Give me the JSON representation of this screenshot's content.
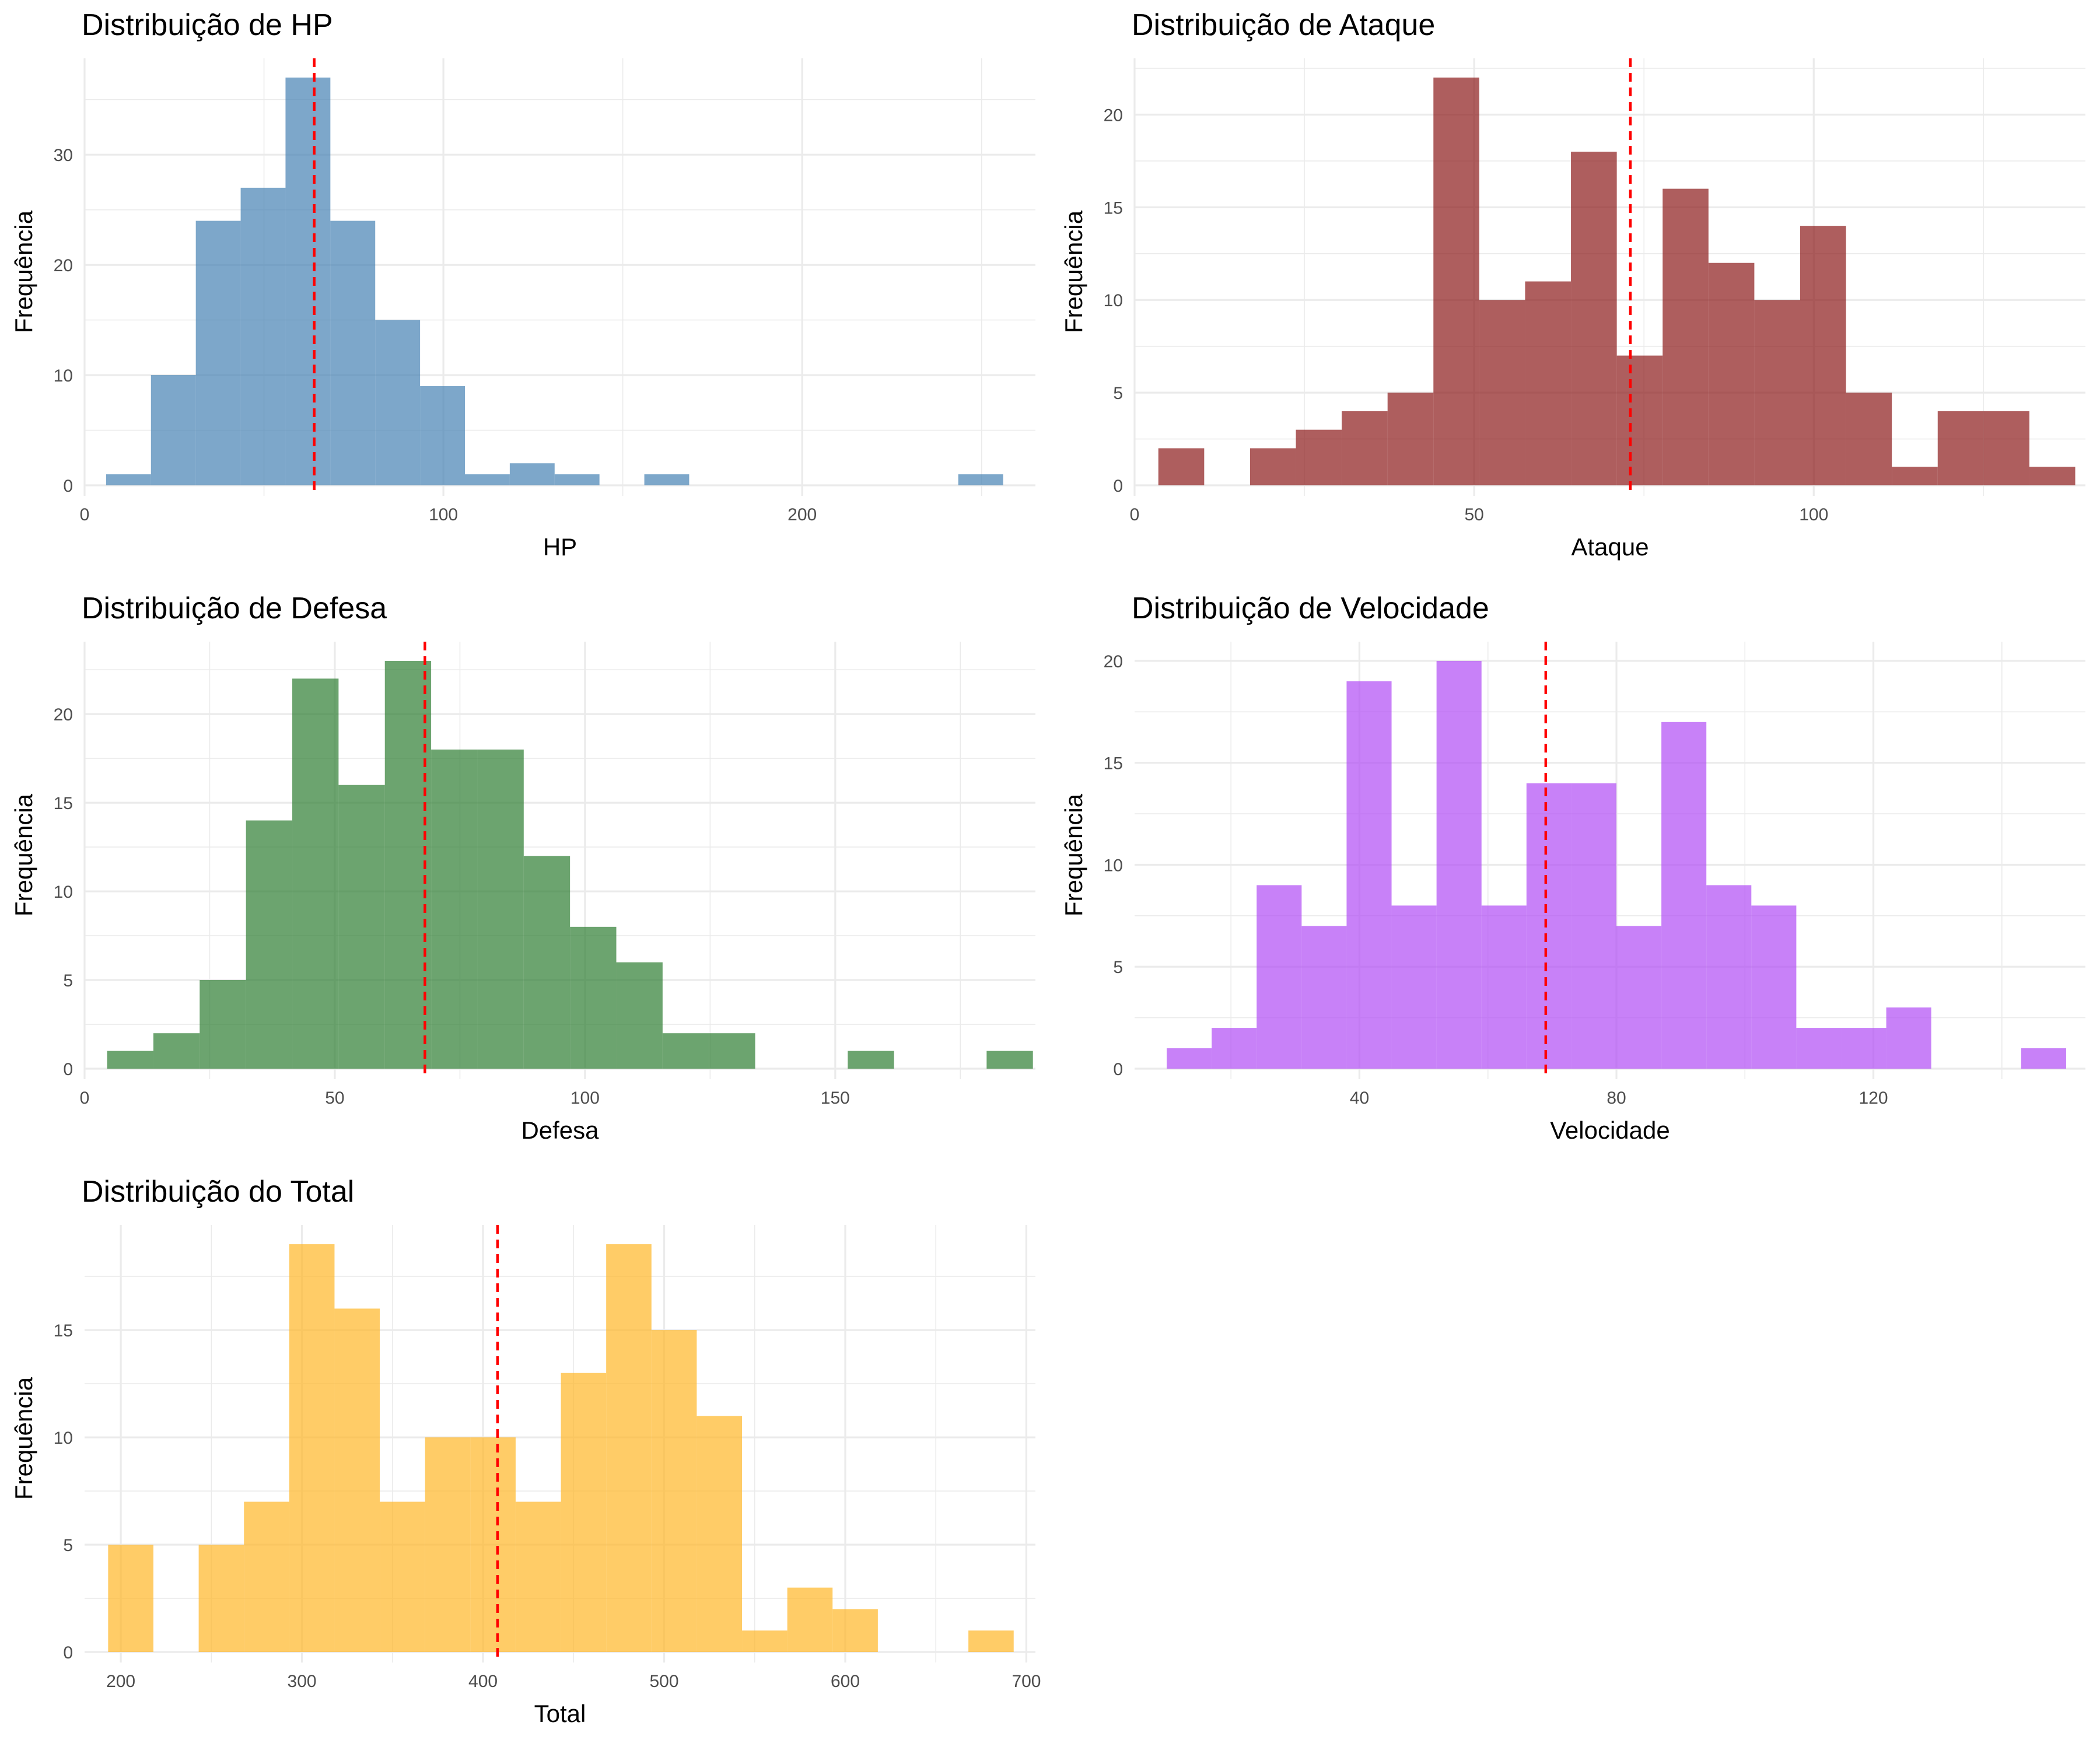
{
  "chart_data": [
    {
      "type": "bar",
      "title": "Distribuição de HP",
      "xlabel": "HP",
      "ylabel": "Frequência",
      "color": "#4682B4",
      "xlim": [
        0,
        265
      ],
      "ylim": [
        0,
        37
      ],
      "xticks": [
        0,
        100,
        200
      ],
      "yticks": [
        0,
        10,
        20,
        30
      ],
      "mean": 64,
      "bin_width": 12.5,
      "bins": [
        {
          "x0": 6,
          "count": 1
        },
        {
          "x0": 18.5,
          "count": 10
        },
        {
          "x0": 31,
          "count": 24
        },
        {
          "x0": 43.5,
          "count": 27
        },
        {
          "x0": 56,
          "count": 37
        },
        {
          "x0": 68.5,
          "count": 24
        },
        {
          "x0": 81,
          "count": 15
        },
        {
          "x0": 93.5,
          "count": 9
        },
        {
          "x0": 106,
          "count": 1
        },
        {
          "x0": 118.5,
          "count": 2
        },
        {
          "x0": 131,
          "count": 1
        },
        {
          "x0": 156,
          "count": 1
        },
        {
          "x0": 243.5,
          "count": 1
        }
      ]
    },
    {
      "type": "bar",
      "title": "Distribuição de Ataque",
      "xlabel": "Ataque",
      "ylabel": "Frequência",
      "color": "#8B1A1A",
      "xlim": [
        0,
        140
      ],
      "ylim": [
        0,
        22
      ],
      "xticks": [
        0,
        50,
        100
      ],
      "yticks": [
        0,
        5,
        10,
        15,
        20
      ],
      "mean": 73,
      "bin_width": 6.75,
      "bins": [
        {
          "x0": 3.5,
          "count": 2
        },
        {
          "x0": 17,
          "count": 2
        },
        {
          "x0": 23.75,
          "count": 3
        },
        {
          "x0": 30.5,
          "count": 4
        },
        {
          "x0": 37.25,
          "count": 5
        },
        {
          "x0": 44,
          "count": 22
        },
        {
          "x0": 50.75,
          "count": 10
        },
        {
          "x0": 57.5,
          "count": 11
        },
        {
          "x0": 64.25,
          "count": 18
        },
        {
          "x0": 71,
          "count": 7
        },
        {
          "x0": 77.75,
          "count": 16
        },
        {
          "x0": 84.5,
          "count": 12
        },
        {
          "x0": 91.25,
          "count": 10
        },
        {
          "x0": 98,
          "count": 14
        },
        {
          "x0": 104.75,
          "count": 5
        },
        {
          "x0": 111.5,
          "count": 1
        },
        {
          "x0": 118.25,
          "count": 4
        },
        {
          "x0": 125,
          "count": 4
        },
        {
          "x0": 131.75,
          "count": 1
        }
      ]
    },
    {
      "type": "bar",
      "title": "Distribuição de Defesa",
      "xlabel": "Defesa",
      "ylabel": "Frequência",
      "color": "#2E7D32",
      "xlim": [
        0,
        190
      ],
      "ylim": [
        0,
        23
      ],
      "xticks": [
        0,
        50,
        100,
        150
      ],
      "yticks": [
        0,
        5,
        10,
        15,
        20
      ],
      "mean": 68,
      "bin_width": 9.25,
      "bins": [
        {
          "x0": 4.5,
          "count": 1
        },
        {
          "x0": 13.75,
          "count": 2
        },
        {
          "x0": 23,
          "count": 5
        },
        {
          "x0": 32.25,
          "count": 14
        },
        {
          "x0": 41.5,
          "count": 22
        },
        {
          "x0": 50.75,
          "count": 16
        },
        {
          "x0": 60,
          "count": 23
        },
        {
          "x0": 69.25,
          "count": 18
        },
        {
          "x0": 78.5,
          "count": 18
        },
        {
          "x0": 87.75,
          "count": 12
        },
        {
          "x0": 97,
          "count": 8
        },
        {
          "x0": 106.25,
          "count": 6
        },
        {
          "x0": 115.5,
          "count": 2
        },
        {
          "x0": 124.75,
          "count": 2
        },
        {
          "x0": 152.5,
          "count": 1
        },
        {
          "x0": 180.25,
          "count": 1
        }
      ]
    },
    {
      "type": "bar",
      "title": "Distribuição de Velocidade",
      "xlabel": "Velocidade",
      "ylabel": "Frequência",
      "color": "#B04CF5",
      "xlim": [
        5,
        153
      ],
      "ylim": [
        0,
        20
      ],
      "xticks": [
        40,
        80,
        120
      ],
      "yticks": [
        0,
        5,
        10,
        15,
        20
      ],
      "mean": 69,
      "bin_width": 7,
      "bins": [
        {
          "x0": 10,
          "count": 1
        },
        {
          "x0": 17,
          "count": 2
        },
        {
          "x0": 24,
          "count": 9
        },
        {
          "x0": 31,
          "count": 7
        },
        {
          "x0": 38,
          "count": 19
        },
        {
          "x0": 45,
          "count": 8
        },
        {
          "x0": 52,
          "count": 20
        },
        {
          "x0": 59,
          "count": 8
        },
        {
          "x0": 66,
          "count": 14
        },
        {
          "x0": 73,
          "count": 14
        },
        {
          "x0": 80,
          "count": 7
        },
        {
          "x0": 87,
          "count": 17
        },
        {
          "x0": 94,
          "count": 9
        },
        {
          "x0": 101,
          "count": 8
        },
        {
          "x0": 108,
          "count": 2
        },
        {
          "x0": 115,
          "count": 2
        },
        {
          "x0": 122,
          "count": 3
        },
        {
          "x0": 143,
          "count": 1
        }
      ]
    },
    {
      "type": "bar",
      "title": "Distribuição do Total",
      "xlabel": "Total",
      "ylabel": "Frequência",
      "color": "#FFB627",
      "xlim": [
        180,
        705
      ],
      "ylim": [
        0,
        19
      ],
      "xticks": [
        200,
        300,
        400,
        500,
        600,
        700
      ],
      "yticks": [
        0,
        5,
        10,
        15
      ],
      "mean": 408,
      "bin_width": 25,
      "bins": [
        {
          "x0": 193,
          "count": 5
        },
        {
          "x0": 243,
          "count": 5
        },
        {
          "x0": 268,
          "count": 7
        },
        {
          "x0": 293,
          "count": 19
        },
        {
          "x0": 318,
          "count": 16
        },
        {
          "x0": 343,
          "count": 7
        },
        {
          "x0": 368,
          "count": 10
        },
        {
          "x0": 393,
          "count": 10
        },
        {
          "x0": 418,
          "count": 7
        },
        {
          "x0": 443,
          "count": 13
        },
        {
          "x0": 468,
          "count": 19
        },
        {
          "x0": 493,
          "count": 15
        },
        {
          "x0": 518,
          "count": 11
        },
        {
          "x0": 543,
          "count": 1
        },
        {
          "x0": 568,
          "count": 3
        },
        {
          "x0": 593,
          "count": 2
        },
        {
          "x0": 668,
          "count": 1
        }
      ]
    }
  ]
}
